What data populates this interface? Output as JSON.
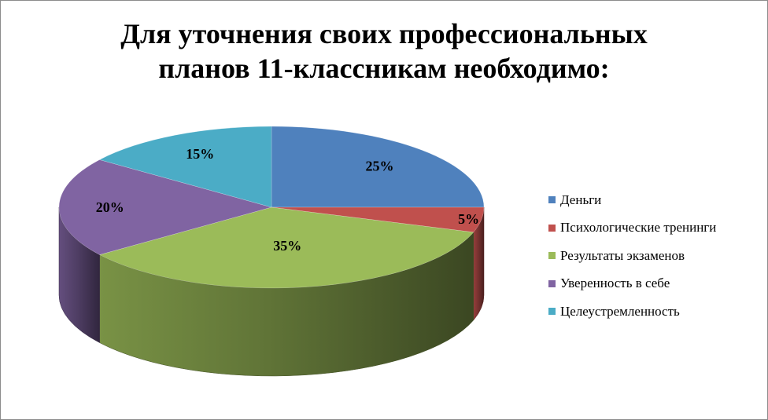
{
  "chart_data": {
    "type": "pie",
    "title": "Для уточнения своих профессиональных\nпланов 11-классникам необходимо:",
    "categories": [
      "Деньги",
      "Психологические тренинги",
      "Результаты экзаменов",
      "Уверенность в себе",
      "Целеустремленность"
    ],
    "values": [
      25,
      5,
      35,
      20,
      15
    ],
    "data_labels": [
      "25%",
      "5%",
      "35%",
      "20%",
      "15%"
    ],
    "colors": [
      "#4F81BD",
      "#C0504D",
      "#9BBB59",
      "#8064A2",
      "#4BACC6"
    ],
    "style": "3d-pie",
    "legend_position": "right"
  }
}
